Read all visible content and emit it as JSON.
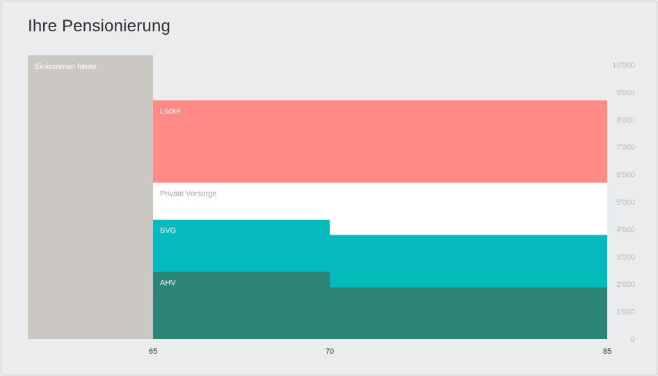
{
  "page": {
    "title": "Ihre Pensionierung"
  },
  "chart_data": {
    "type": "area",
    "title": "Ihre Pensionierung",
    "xlabel": "",
    "ylabel": "",
    "ylim": [
      0,
      10000
    ],
    "y_ticks": [
      {
        "value": 0,
        "label": "0"
      },
      {
        "value": 1000,
        "label": "1'000"
      },
      {
        "value": 2000,
        "label": "2'000"
      },
      {
        "value": 3000,
        "label": "3'000"
      },
      {
        "value": 4000,
        "label": "4'000"
      },
      {
        "value": 5000,
        "label": "5'000"
      },
      {
        "value": 6000,
        "label": "6'000"
      },
      {
        "value": 7000,
        "label": "7'000"
      },
      {
        "value": 8000,
        "label": "8'000"
      },
      {
        "value": 9000,
        "label": "9'000"
      },
      {
        "value": 10000,
        "label": "10'000"
      }
    ],
    "x_ticks": [
      {
        "value": 65,
        "label": "65"
      },
      {
        "value": 70,
        "label": "70"
      },
      {
        "value": 85,
        "label": "85"
      }
    ],
    "current_income": {
      "label": "Einkommen heute",
      "value": 10350,
      "color": "#cbc8c4"
    },
    "series": [
      {
        "name": "AHV",
        "color": "#2b8474",
        "text_color": "#ffffff",
        "segments": [
          {
            "from": 65,
            "to": 70,
            "value": 2450
          },
          {
            "from": 70,
            "to": 85,
            "value": 1900
          }
        ]
      },
      {
        "name": "BVG",
        "color": "#04babd",
        "text_color": "#ffffff",
        "segments": [
          {
            "from": 65,
            "to": 70,
            "value": 1900
          },
          {
            "from": 70,
            "to": 85,
            "value": 1900
          }
        ]
      },
      {
        "name": "Private Vorsorge",
        "color": "#ffffff",
        "text_color": "#a3a6aa",
        "segments": [
          {
            "from": 65,
            "to": 70,
            "value": 1350
          },
          {
            "from": 70,
            "to": 85,
            "value": 1900
          }
        ]
      },
      {
        "name": "Lücke",
        "color": "#ff8a86",
        "text_color": "#ffffff",
        "segments": [
          {
            "from": 65,
            "to": 70,
            "value": 3000
          },
          {
            "from": 70,
            "to": 85,
            "value": 3000
          }
        ]
      }
    ]
  }
}
